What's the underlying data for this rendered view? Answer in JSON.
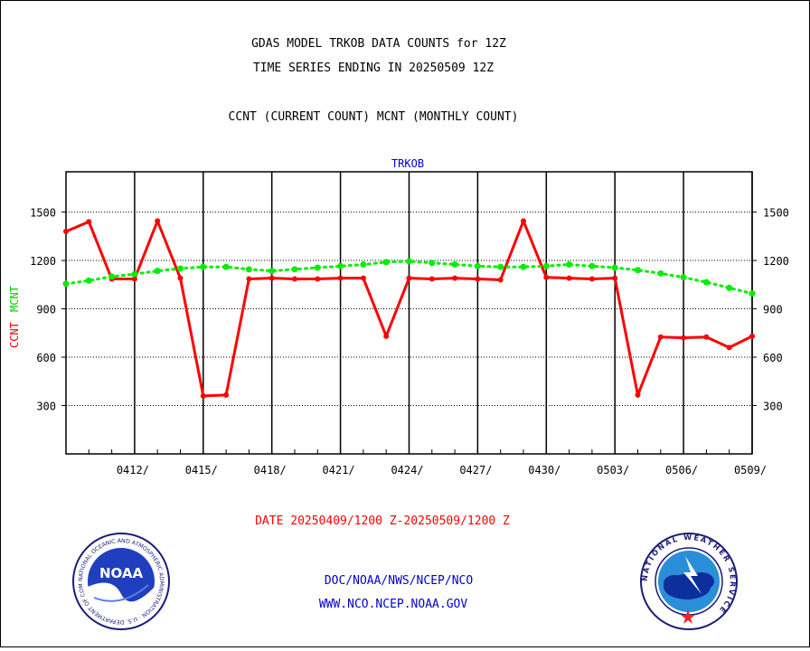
{
  "header": {
    "title_line1": "GDAS MODEL TRKOB DATA COUNTS for 12Z",
    "title_line2": "TIME SERIES ENDING IN 20250509 12Z",
    "subtitle": "CCNT (CURRENT COUNT) MCNT (MONTHLY COUNT)"
  },
  "footer": {
    "date_range": "DATE 20250409/1200 Z-20250509/1200 Z",
    "org_line": "DOC/NOAA/NWS/NCEP/NCO",
    "url_line": "WWW.NCO.NCEP.NOAA.GOV"
  },
  "logos": {
    "noaa_text": "NOAA",
    "noaa_ring_text": "NATIONAL OCEANIC AND ATMOSPHERIC ADMINISTRATION · U.S. DEPARTMENT OF COMMERCE ·",
    "nws_ring_text": "NATIONAL WEATHER SERVICE"
  },
  "colors": {
    "ccnt": "#ff0000",
    "mcnt": "#00ee00",
    "plot_title": "#0000cc",
    "axis": "#000000"
  },
  "chart_data": {
    "type": "line",
    "title": "TRKOB",
    "ylabel_left_ccnt": "CCNT",
    "ylabel_left_mcnt": "MCNT",
    "ylim": [
      0,
      1750
    ],
    "yticks": [
      300,
      600,
      900,
      1200,
      1500
    ],
    "ytick_labels": [
      "300",
      "600",
      "900",
      "1200",
      "1500"
    ],
    "x": [
      "0409",
      "0410",
      "0411",
      "0412",
      "0413",
      "0414",
      "0415",
      "0416",
      "0417",
      "0418",
      "0419",
      "0420",
      "0421",
      "0422",
      "0423",
      "0424",
      "0425",
      "0426",
      "0427",
      "0428",
      "0429",
      "0430",
      "0501",
      "0502",
      "0503",
      "0504",
      "0505",
      "0506",
      "0507",
      "0508",
      "0509"
    ],
    "xtick_labels": [
      "0412/",
      "0415/",
      "0418/",
      "0421/",
      "0424/",
      "0427/",
      "0430/",
      "0503/",
      "0506/",
      "0509/"
    ],
    "xtick_positions": [
      3,
      6,
      9,
      12,
      15,
      18,
      21,
      24,
      27,
      30
    ],
    "grid_y": true,
    "grid_x": true,
    "series": [
      {
        "name": "CCNT",
        "color": "#ff0000",
        "style": "solid",
        "values": [
          1380,
          1440,
          1085,
          1085,
          1445,
          1090,
          360,
          365,
          1085,
          1090,
          1085,
          1085,
          1090,
          1090,
          730,
          1090,
          1085,
          1090,
          1085,
          1080,
          1445,
          1095,
          1090,
          1085,
          1090,
          365,
          725,
          720,
          725,
          660,
          730
        ]
      },
      {
        "name": "MCNT",
        "color": "#00ee00",
        "style": "dotted",
        "values": [
          1055,
          1075,
          1100,
          1115,
          1135,
          1150,
          1160,
          1160,
          1145,
          1135,
          1145,
          1155,
          1165,
          1175,
          1190,
          1195,
          1185,
          1175,
          1165,
          1160,
          1160,
          1165,
          1175,
          1165,
          1155,
          1140,
          1120,
          1095,
          1065,
          1030,
          995
        ]
      }
    ]
  }
}
